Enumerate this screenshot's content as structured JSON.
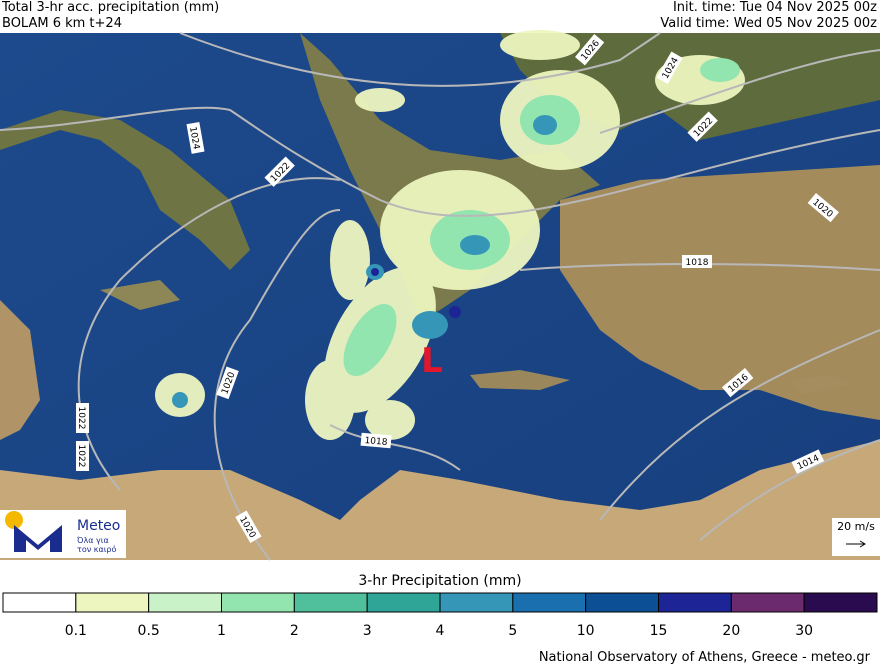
{
  "header": {
    "title": "Total 3-hr acc. precipitation (mm)",
    "model": "BOLAM 6 km t+24",
    "init_time": "Init. time: Tue 04 Nov 2025 00z",
    "valid_time": "Valid time: Wed 05 Nov 2025 00z"
  },
  "map": {
    "isobars": [
      1026,
      1024,
      1024,
      1022,
      1022,
      1022,
      1022,
      1020,
      1020,
      1020,
      1018,
      1018,
      1016,
      1014
    ],
    "low": "L",
    "wind_legend": "20 m/s"
  },
  "logo": {
    "name": "Meteo",
    "tagline_1": "Όλα για",
    "tagline_2": "τον καιρό"
  },
  "colorbar": {
    "title": "3-hr Precipitation (mm)",
    "bounds": [
      0.1,
      0.5,
      1,
      2,
      3,
      4,
      5,
      10,
      15,
      20,
      30
    ],
    "colors": [
      "#ffffff",
      "#eef6bf",
      "#caf2c9",
      "#93e5b0",
      "#4fbf9c",
      "#2fa597",
      "#3596b8",
      "#1a6fae",
      "#0d4f95",
      "#1d2596",
      "#6b2a6e",
      "#2b0b4f"
    ]
  },
  "footer": "National Observatory of Athens, Greece - meteo.gr"
}
